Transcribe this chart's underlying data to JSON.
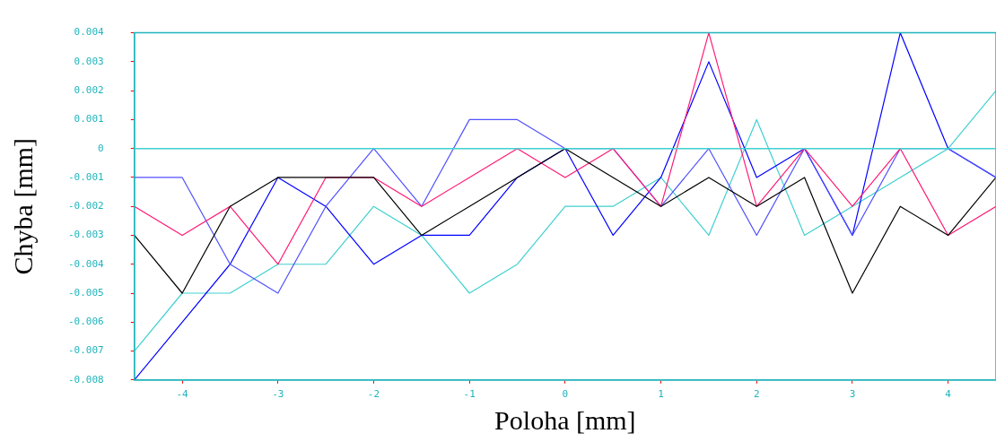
{
  "chart_data": {
    "type": "line",
    "xlabel": "Poloha [mm]",
    "ylabel": "Chyba [mm]",
    "x": [
      -4.5,
      -4,
      -3.5,
      -3,
      -2.5,
      -2,
      -1.5,
      -1,
      -0.5,
      0,
      0.5,
      1,
      1.5,
      2,
      2.5,
      3,
      3.5,
      4,
      4.5
    ],
    "series": [
      {
        "color": "#000000",
        "values": [
          -0.003,
          -0.005,
          -0.002,
          -0.001,
          -0.001,
          -0.001,
          -0.003,
          -0.002,
          -0.001,
          0,
          -0.001,
          -0.002,
          -0.001,
          -0.002,
          -0.001,
          -0.005,
          -0.002,
          -0.003,
          -0.001
        ]
      },
      {
        "color": "#ff1a75",
        "values": [
          -0.002,
          -0.003,
          -0.002,
          -0.004,
          -0.001,
          -0.001,
          -0.002,
          -0.001,
          0,
          -0.001,
          0,
          -0.002,
          0.004,
          -0.002,
          0,
          -0.002,
          0,
          -0.003,
          -0.002
        ]
      },
      {
        "color": "#5050ff",
        "values": [
          -0.001,
          -0.001,
          -0.004,
          -0.005,
          -0.002,
          0,
          -0.002,
          0.001,
          0.001,
          0,
          0,
          -0.002,
          0,
          -0.003,
          0,
          -0.003,
          0,
          0,
          -0.001
        ]
      },
      {
        "color": "#0000ff",
        "values": [
          -0.008,
          -0.006,
          -0.004,
          -0.001,
          -0.002,
          -0.004,
          -0.003,
          -0.003,
          -0.001,
          0,
          -0.003,
          -0.001,
          0.003,
          -0.001,
          0,
          -0.003,
          0.004,
          0,
          -0.001
        ]
      },
      {
        "color": "#40d0d0",
        "values": [
          -0.007,
          -0.005,
          -0.005,
          -0.004,
          -0.004,
          -0.002,
          -0.003,
          -0.005,
          -0.004,
          -0.002,
          -0.002,
          -0.001,
          -0.003,
          0.001,
          -0.003,
          -0.002,
          -0.001,
          0,
          0.002
        ]
      }
    ],
    "xlim": [
      -4.5,
      4.5
    ],
    "xticks": [
      -4,
      -3,
      -2,
      -1,
      0,
      1,
      2,
      3,
      4
    ],
    "ylim": [
      -0.008,
      0.004
    ],
    "yticks": [
      -0.008,
      -0.007,
      -0.006,
      -0.005,
      -0.004,
      -0.003,
      -0.002,
      -0.001,
      0,
      0.001,
      0.002,
      0.003,
      0.004
    ],
    "ref_lines": [
      {
        "axis": "y",
        "value": 0,
        "color": "#40d0d0"
      }
    ],
    "grid": false,
    "legend": false,
    "marker": "none",
    "line_style": "solid"
  }
}
